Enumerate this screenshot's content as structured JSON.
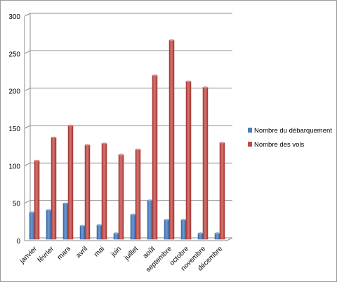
{
  "chart_data": {
    "type": "bar",
    "categories": [
      "janvier",
      "février",
      "mars",
      "avril",
      "mai",
      "juin",
      "juillet",
      "août",
      "septembre",
      "octobre",
      "novembre",
      "décembre"
    ],
    "series": [
      {
        "name": "Nombre du débarquement",
        "color": "#4a7ebb",
        "values": [
          36,
          39,
          48,
          18,
          19,
          8,
          33,
          52,
          26,
          26,
          8,
          8
        ]
      },
      {
        "name": "Nombre des vols",
        "color": "#be4b48",
        "values": [
          105,
          136,
          152,
          126,
          128,
          113,
          120,
          219,
          266,
          211,
          203,
          129
        ]
      }
    ],
    "ylim": [
      0,
      300
    ],
    "yticks": [
      0,
      50,
      100,
      150,
      200,
      250,
      300
    ],
    "grid": true,
    "legend": "right",
    "title": "",
    "xlabel": "",
    "ylabel": ""
  }
}
